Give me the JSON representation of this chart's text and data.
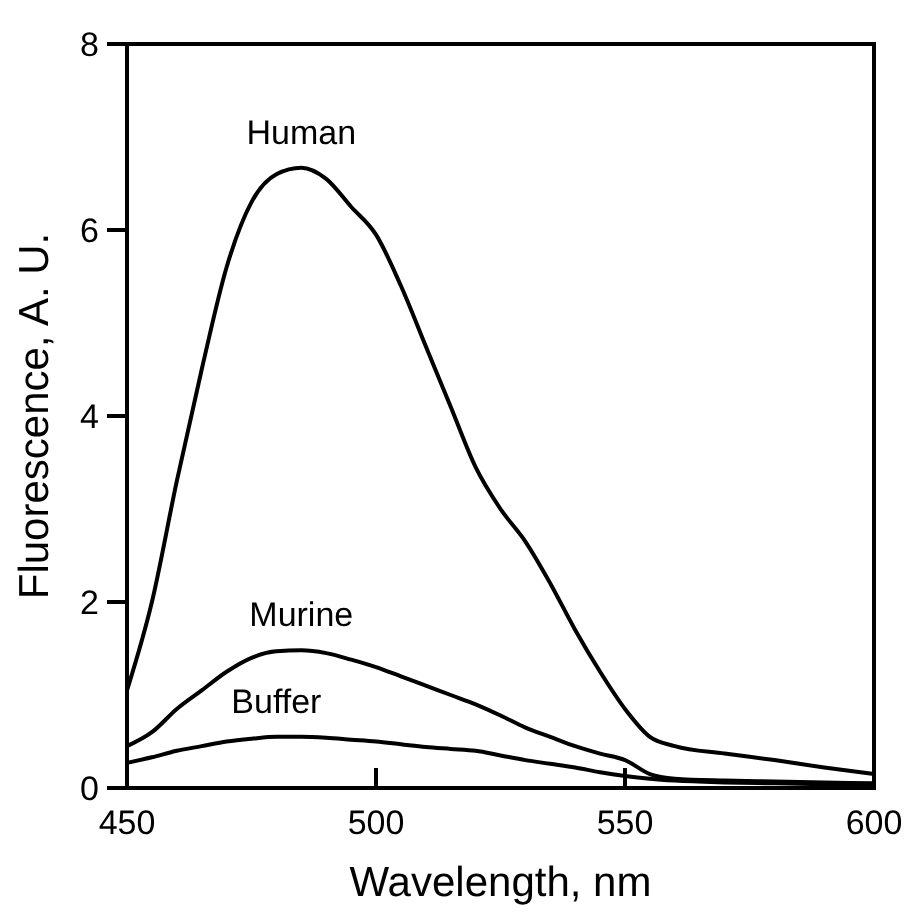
{
  "chart_data": {
    "type": "line",
    "xlabel": "Wavelength, nm",
    "ylabel": "Fluorescence, A. U.",
    "xlim": [
      450,
      600
    ],
    "ylim": [
      0,
      8
    ],
    "xticks": [
      450,
      500,
      550,
      600
    ],
    "yticks": [
      0,
      2,
      4,
      6,
      8
    ],
    "grid": false,
    "legend": false,
    "marker": "none",
    "line_style": "solid",
    "x": [
      450,
      455,
      460,
      465,
      470,
      475,
      480,
      485,
      490,
      495,
      500,
      505,
      510,
      515,
      520,
      525,
      530,
      535,
      540,
      545,
      550,
      555,
      560,
      570,
      580,
      590,
      600
    ],
    "series": [
      {
        "name": "Human",
        "color": "#000000",
        "values": [
          1.05,
          2.0,
          3.3,
          4.5,
          5.6,
          6.3,
          6.6,
          6.67,
          6.55,
          6.25,
          5.95,
          5.4,
          4.75,
          4.1,
          3.45,
          3.0,
          2.65,
          2.2,
          1.7,
          1.25,
          0.85,
          0.55,
          0.45,
          0.37,
          0.3,
          0.22,
          0.15
        ]
      },
      {
        "name": "Murine",
        "color": "#000000",
        "values": [
          0.45,
          0.6,
          0.85,
          1.05,
          1.25,
          1.4,
          1.47,
          1.48,
          1.45,
          1.38,
          1.3,
          1.2,
          1.1,
          1.0,
          0.9,
          0.78,
          0.65,
          0.55,
          0.45,
          0.37,
          0.3,
          0.15,
          0.1,
          0.08,
          0.07,
          0.06,
          0.05
        ]
      },
      {
        "name": "Buffer",
        "color": "#000000",
        "values": [
          0.27,
          0.33,
          0.4,
          0.45,
          0.5,
          0.53,
          0.55,
          0.55,
          0.54,
          0.52,
          0.5,
          0.47,
          0.44,
          0.42,
          0.4,
          0.35,
          0.3,
          0.26,
          0.22,
          0.17,
          0.13,
          0.1,
          0.08,
          0.06,
          0.05,
          0.04,
          0.03
        ]
      }
    ]
  }
}
